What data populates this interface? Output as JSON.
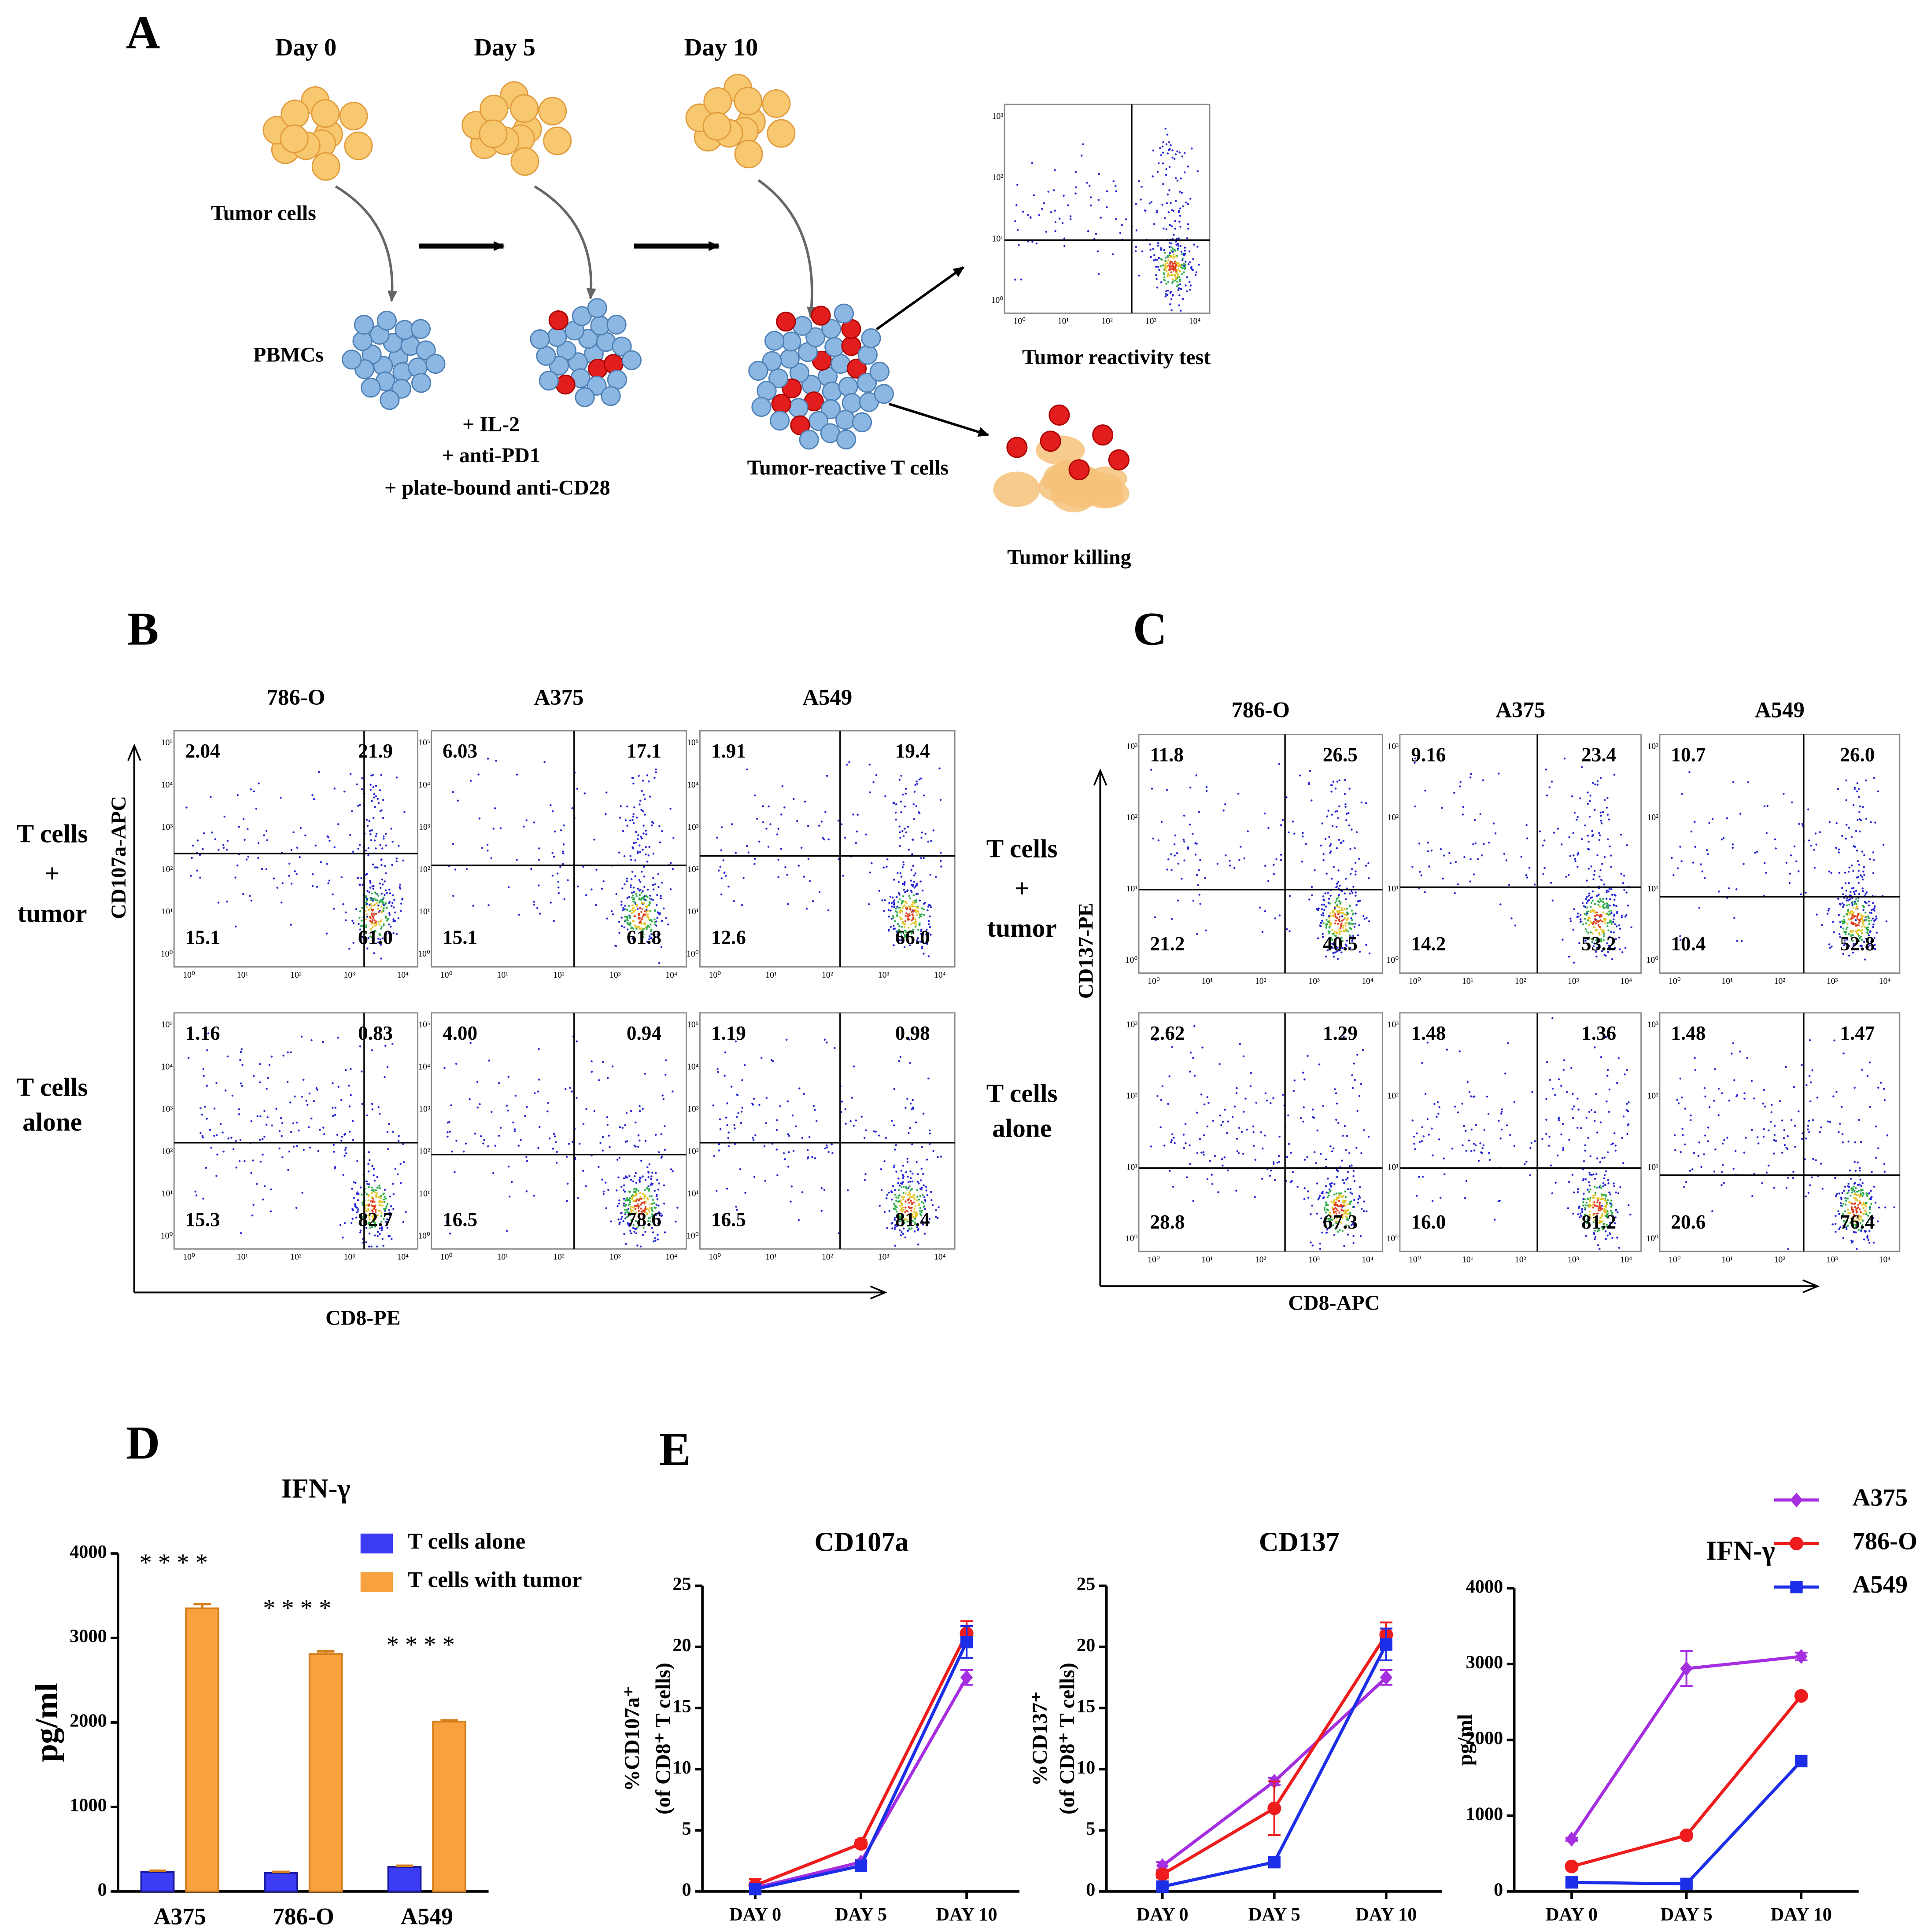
{
  "panel_A": {
    "label": "A",
    "days": [
      "Day 0",
      "Day 5",
      "Day 10"
    ],
    "tumor_cells": "Tumor cells",
    "pbmcs": "PBMCs",
    "treatments": [
      "+ IL-2",
      "+ anti-PD1",
      "+ plate-bound anti-CD28"
    ],
    "reactive": "Tumor-reactive T cells",
    "reactivity_test": "Tumor reactivity test",
    "killing": "Tumor killing",
    "x_ticks": [
      "10⁰",
      "10¹",
      "10²",
      "10³",
      "10⁴"
    ],
    "y_ticks": [
      "10⁰",
      "10¹",
      "10²",
      "10³"
    ]
  },
  "panel_B": {
    "label": "B",
    "columns": [
      "786-O",
      "A375",
      "A549"
    ],
    "rows": [
      {
        "label": [
          "T cells",
          "+",
          "tumor"
        ],
        "quadrants": [
          [
            "2.04",
            "21.9",
            "15.1",
            "61.0"
          ],
          [
            "6.03",
            "17.1",
            "15.1",
            "61.8"
          ],
          [
            "1.91",
            "19.4",
            "12.6",
            "66.0"
          ]
        ]
      },
      {
        "label": [
          "T cells",
          "alone"
        ],
        "quadrants": [
          [
            "1.16",
            "0.83",
            "15.3",
            "82.7"
          ],
          [
            "4.00",
            "0.94",
            "16.5",
            "78.6"
          ],
          [
            "1.19",
            "0.98",
            "16.5",
            "81.4"
          ]
        ]
      }
    ],
    "y_axis": "CD107a-APC",
    "x_axis": "CD8-PE",
    "x_ticks": [
      "10⁰",
      "10¹",
      "10²",
      "10³",
      "10⁴"
    ],
    "y_ticks": [
      "10⁰",
      "10¹",
      "10²",
      "10³",
      "10⁴",
      "10⁵"
    ]
  },
  "panel_C": {
    "label": "C",
    "columns": [
      "786-O",
      "A375",
      "A549"
    ],
    "rows": [
      {
        "label": [
          "T cells",
          "+",
          "tumor"
        ],
        "quadrants": [
          [
            "11.8",
            "26.5",
            "21.2",
            "40.5"
          ],
          [
            "9.16",
            "23.4",
            "14.2",
            "53.2"
          ],
          [
            "10.7",
            "26.0",
            "10.4",
            "52.8"
          ]
        ]
      },
      {
        "label": [
          "T cells",
          "alone"
        ],
        "quadrants": [
          [
            "2.62",
            "1.29",
            "28.8",
            "67.3"
          ],
          [
            "1.48",
            "1.36",
            "16.0",
            "81.2"
          ],
          [
            "1.48",
            "1.47",
            "20.6",
            "76.4"
          ]
        ]
      }
    ],
    "y_axis": "CD137-PE",
    "x_axis": "CD8-APC",
    "x_ticks": [
      "10⁰",
      "10¹",
      "10²",
      "10³",
      "10⁴"
    ],
    "y_ticks": [
      "10⁰",
      "10¹",
      "10²",
      "10³"
    ]
  },
  "chart_data": [
    {
      "type": "bar",
      "panel_label": "D",
      "title": "IFN-γ",
      "y_label": [
        "pg/ml"
      ],
      "categories": [
        "A375",
        "786-O",
        "A549"
      ],
      "series": [
        {
          "name": "T cells alone",
          "color": "#3c3cf5",
          "values": [
            230,
            220,
            290
          ],
          "errors": [
            15,
            12,
            15
          ]
        },
        {
          "name": "T cells with tumor",
          "color": "#f7a23e",
          "values": [
            3350,
            2810,
            2010
          ],
          "errors": [
            50,
            30,
            15
          ]
        }
      ],
      "annotations": [
        "* * * *",
        "* * * *",
        "* * * *"
      ],
      "ylim": [
        0,
        4000
      ],
      "yticks": [
        0,
        1000,
        2000,
        3000,
        4000
      ],
      "legend": "top-right"
    },
    {
      "type": "line",
      "panel_label": "E",
      "title": "CD107a",
      "y_label": [
        "%CD107a⁺",
        "(of CD8⁺ T cells)"
      ],
      "categories": [
        "DAY 0",
        "DAY 5",
        "DAY 10"
      ],
      "series": [
        {
          "color": "#a52ee0",
          "marker": "diamond",
          "values": [
            0.3,
            2.4,
            17.5
          ],
          "errors": [
            0.2,
            0.2,
            0.6
          ]
        },
        {
          "color": "#ee1c1c",
          "marker": "circle",
          "values": [
            0.5,
            3.9,
            21.1
          ],
          "errors": [
            0.5,
            0.3,
            1.0
          ]
        },
        {
          "color": "#1c2ee8",
          "marker": "square",
          "values": [
            0.2,
            2.1,
            20.4
          ],
          "errors": [
            0.1,
            0.3,
            1.3
          ]
        }
      ],
      "ylim": [
        0,
        25
      ],
      "yticks": [
        0,
        5,
        10,
        15,
        20,
        25
      ]
    },
    {
      "type": "line",
      "title": "CD137",
      "y_label": [
        "%CD137⁺",
        "(of CD8⁺ T cells)"
      ],
      "categories": [
        "DAY 0",
        "DAY 5",
        "DAY 10"
      ],
      "series": [
        {
          "color": "#a52ee0",
          "marker": "diamond",
          "values": [
            2.1,
            9.0,
            17.5
          ],
          "errors": [
            0.3,
            0.3,
            0.6
          ]
        },
        {
          "color": "#ee1c1c",
          "marker": "circle",
          "values": [
            1.4,
            6.8,
            21.0
          ],
          "errors": [
            0.3,
            2.2,
            1.0
          ]
        },
        {
          "color": "#1c2ee8",
          "marker": "square",
          "values": [
            0.4,
            2.4,
            20.2
          ],
          "errors": [
            0.1,
            0.2,
            1.3
          ]
        }
      ],
      "ylim": [
        0,
        25
      ],
      "yticks": [
        0,
        5,
        10,
        15,
        20,
        25
      ]
    },
    {
      "type": "line",
      "title": "IFN-γ",
      "y_label": [
        "pg/ml"
      ],
      "categories": [
        "DAY 0",
        "DAY 5",
        "DAY 10"
      ],
      "series": [
        {
          "name": "A375",
          "color": "#a52ee0",
          "marker": "diamond",
          "values": [
            690,
            2940,
            3100
          ],
          "errors": [
            20,
            230,
            50
          ]
        },
        {
          "name": "786-O",
          "color": "#ee1c1c",
          "marker": "circle",
          "values": [
            330,
            740,
            2580
          ],
          "errors": [
            20,
            20,
            20
          ]
        },
        {
          "name": "A549",
          "color": "#1c2ee8",
          "marker": "square",
          "values": [
            120,
            100,
            1720
          ],
          "errors": [
            20,
            20,
            20
          ]
        }
      ],
      "ylim": [
        0,
        4000
      ],
      "yticks": [
        0,
        1000,
        2000,
        3000,
        4000
      ],
      "legend": "top-right"
    }
  ]
}
